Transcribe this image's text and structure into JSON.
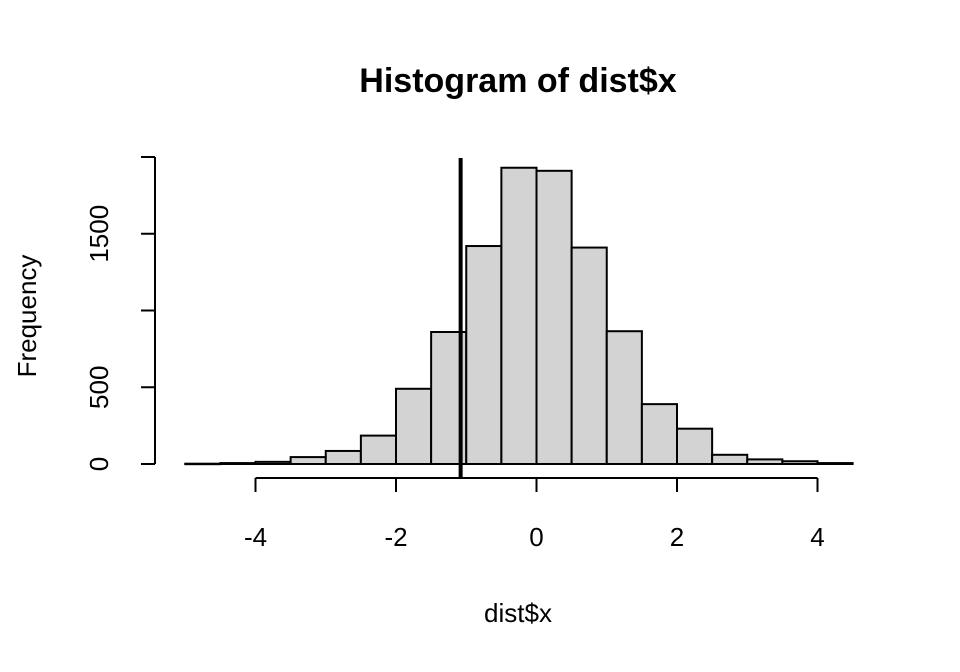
{
  "chart_data": {
    "type": "bar",
    "title": "Histogram of dist$x",
    "xlabel": "dist$x",
    "ylabel": "Frequency",
    "xlim": [
      -5,
      4.5
    ],
    "ylim": [
      0,
      2000
    ],
    "x_ticks": [
      -4,
      -2,
      0,
      2,
      4
    ],
    "x_tick_labels": [
      "-4",
      "-2",
      "0",
      "2",
      "4"
    ],
    "y_ticks": [
      0,
      500,
      1000,
      1500,
      2000
    ],
    "y_tick_labels": [
      "0",
      "500",
      "",
      "1500",
      ""
    ],
    "bin_width": 0.5,
    "bins": [
      {
        "start": -5.0,
        "end": -4.5,
        "count": 2
      },
      {
        "start": -4.5,
        "end": -4.0,
        "count": 6
      },
      {
        "start": -4.0,
        "end": -3.5,
        "count": 14
      },
      {
        "start": -3.5,
        "end": -3.0,
        "count": 45
      },
      {
        "start": -3.0,
        "end": -2.5,
        "count": 85
      },
      {
        "start": -2.5,
        "end": -2.0,
        "count": 185
      },
      {
        "start": -2.0,
        "end": -1.5,
        "count": 490
      },
      {
        "start": -1.5,
        "end": -1.0,
        "count": 860
      },
      {
        "start": -1.0,
        "end": -0.5,
        "count": 1420
      },
      {
        "start": -0.5,
        "end": 0.0,
        "count": 1930
      },
      {
        "start": 0.0,
        "end": 0.5,
        "count": 1910
      },
      {
        "start": 0.5,
        "end": 1.0,
        "count": 1410
      },
      {
        "start": 1.0,
        "end": 1.5,
        "count": 865
      },
      {
        "start": 1.5,
        "end": 2.0,
        "count": 390
      },
      {
        "start": 2.0,
        "end": 2.5,
        "count": 230
      },
      {
        "start": 2.5,
        "end": 3.0,
        "count": 60
      },
      {
        "start": 3.0,
        "end": 3.5,
        "count": 30
      },
      {
        "start": 3.5,
        "end": 4.0,
        "count": 18
      },
      {
        "start": 4.0,
        "end": 4.5,
        "count": 6
      }
    ],
    "reference_line": {
      "x": -1.08
    },
    "grid": false,
    "colors": {
      "bar_fill": "#d3d3d3",
      "bar_stroke": "#000000",
      "line": "#000000"
    }
  }
}
